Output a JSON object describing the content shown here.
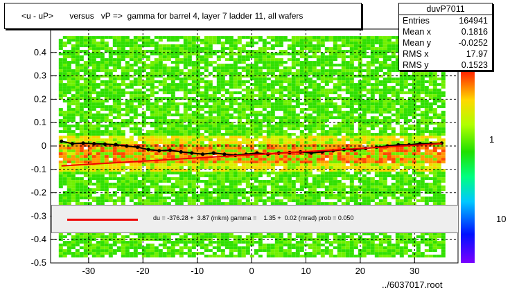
{
  "title": "<u - uP>       versus   vP =>  gamma for barrel 4, layer 7 ladder 11, all wafers",
  "stats": {
    "name": "duvP7011",
    "rows": [
      {
        "label": "Entries",
        "value": "164941"
      },
      {
        "label": "Mean x",
        "value": "0.1816"
      },
      {
        "label": "Mean y",
        "value": "-0.0252"
      },
      {
        "label": "RMS x",
        "value": "17.97"
      },
      {
        "label": "RMS y",
        "value": "0.1523"
      }
    ]
  },
  "fit_text": "du = -376.28 +  3.87 (mkm) gamma =    1.35 +  0.02 (mrad) prob = 0.050",
  "footer": "../6037017.root",
  "chart_data": {
    "type": "heatmap",
    "title": "<u - uP>       versus   vP =>  gamma for barrel 4, layer 7 ladder 11, all wafers",
    "xlim": [
      -37,
      38
    ],
    "ylim": [
      -0.5,
      0.5
    ],
    "x_ticks": [
      -30,
      -20,
      -10,
      0,
      10,
      20,
      30
    ],
    "y_ticks": [
      -0.5,
      -0.4,
      -0.3,
      -0.2,
      -0.1,
      0,
      0.1,
      0.2,
      0.3,
      0.4
    ],
    "grid": true,
    "color_scale": {
      "log": true,
      "labels": [
        "1",
        "10"
      ]
    },
    "profile_points": {
      "x": [
        -35,
        -33,
        -31,
        -29,
        -27,
        -25,
        -23,
        -21,
        -19,
        -17,
        -15,
        -13,
        -11,
        -9,
        -7,
        -5,
        -3,
        -1,
        1,
        3,
        5,
        7,
        9,
        11,
        13,
        15,
        17,
        19,
        21,
        23,
        25,
        27,
        29,
        31,
        33,
        35
      ],
      "y": [
        0.02,
        0.01,
        0.012,
        0.01,
        0.008,
        0.006,
        0.0,
        -0.005,
        -0.015,
        -0.02,
        -0.018,
        -0.025,
        -0.03,
        -0.035,
        -0.03,
        -0.035,
        -0.04,
        -0.035,
        -0.03,
        -0.035,
        -0.03,
        -0.028,
        -0.025,
        -0.03,
        -0.025,
        -0.02,
        -0.015,
        -0.015,
        -0.01,
        -0.005,
        0.0,
        0.005,
        0.005,
        0.01,
        0.01,
        0.012
      ]
    },
    "fit_line": {
      "x": [
        -35,
        35
      ],
      "y": [
        -0.085,
        0.01
      ],
      "color": "#ee0000"
    },
    "colors": {
      "profile": "#000000",
      "fit": "#ee0000"
    }
  }
}
